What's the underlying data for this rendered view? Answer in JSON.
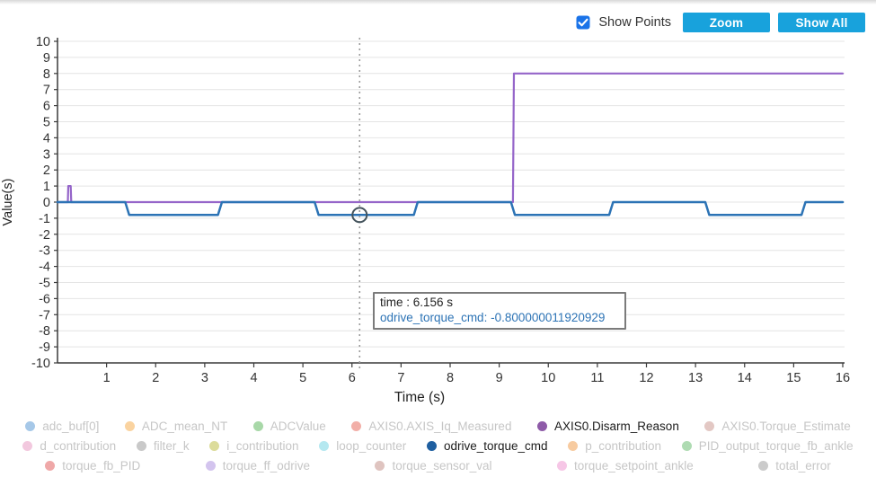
{
  "toolbar": {
    "show_points_label": "Show Points",
    "show_points_checked": true,
    "zoom_button": "Zoom",
    "show_all_button": "Show All",
    "button_color": "#18A2DC",
    "checkbox_color": "#1A73E8"
  },
  "chart_data": {
    "type": "line",
    "title": "",
    "xlabel": "Time (s)",
    "ylabel": "Value(s)",
    "xlim": [
      0,
      16
    ],
    "ylim": [
      -10,
      10
    ],
    "xticks": [
      1,
      2,
      3,
      4,
      5,
      6,
      7,
      8,
      9,
      10,
      11,
      12,
      13,
      14,
      15,
      16
    ],
    "yticks": [
      -10,
      -9,
      -8,
      -7,
      -6,
      -5,
      -4,
      -3,
      -2,
      -1,
      0,
      1,
      2,
      3,
      4,
      5,
      6,
      7,
      8,
      9,
      10
    ],
    "grid": "horizontal",
    "legend_position": "bottom",
    "colors": {
      "grid": "#e4e4e4",
      "axis": "#3a3a3a",
      "tick_text": "#333333",
      "cursor": "#9a9a9a",
      "marker": "#44535c"
    },
    "series": [
      {
        "name": "AXIS0.Disarm_Reason",
        "color": "#9565C9",
        "width": 2.2,
        "points": [
          [
            0,
            0
          ],
          [
            0.21,
            0
          ],
          [
            0.22,
            1
          ],
          [
            0.27,
            1
          ],
          [
            0.28,
            0
          ],
          [
            9.28,
            0
          ],
          [
            9.3,
            8
          ],
          [
            16,
            8
          ]
        ]
      },
      {
        "name": "odrive_torque_cmd",
        "color": "#2C73B5",
        "width": 2.5,
        "points": [
          [
            0,
            0
          ],
          [
            1.38,
            0
          ],
          [
            1.46,
            -0.8
          ],
          [
            3.27,
            -0.8
          ],
          [
            3.35,
            0
          ],
          [
            5.24,
            0
          ],
          [
            5.32,
            -0.8
          ],
          [
            7.26,
            -0.8
          ],
          [
            7.34,
            0
          ],
          [
            9.24,
            0
          ],
          [
            9.32,
            -0.8
          ],
          [
            11.24,
            -0.8
          ],
          [
            11.32,
            0
          ],
          [
            13.2,
            0
          ],
          [
            13.28,
            -0.8
          ],
          [
            15.16,
            -0.8
          ],
          [
            15.24,
            0
          ],
          [
            16,
            0
          ]
        ]
      }
    ],
    "cursor": {
      "time": 6.156,
      "marker_series": "odrive_torque_cmd",
      "marker_value": -0.8
    }
  },
  "tooltip": {
    "line1": "time : 6.156 s",
    "line2": "odrive_torque_cmd: -0.800000011920929",
    "line2_color": "#2C73B5"
  },
  "legend": {
    "active_text_color": "#1b1b1b",
    "faded_text_color": "#c6c6c6",
    "rows": [
      [
        {
          "label": "adc_buf[0]",
          "color": "#a6c8e8",
          "active": false
        },
        {
          "label": "ADC_mean_NT",
          "color": "#fad3a0",
          "active": false
        },
        {
          "label": "ADCValue",
          "color": "#a8d8a8",
          "active": false
        },
        {
          "label": "AXIS0.AXIS_Iq_Measured",
          "color": "#f2afa8",
          "active": false
        },
        {
          "label": "AXIS0.Disarm_Reason",
          "color": "#8e5ba8",
          "active": true
        },
        {
          "label": "AXIS0.Torque_Estimate",
          "color": "#e3c8c4",
          "active": false
        }
      ],
      [
        {
          "label": "d_contribution",
          "color": "#f2c8de",
          "active": false
        },
        {
          "label": "filter_k",
          "color": "#c9c9c9",
          "active": false
        },
        {
          "label": "i_contribution",
          "color": "#dcdc9b",
          "active": false
        },
        {
          "label": "loop_counter",
          "color": "#b5e8f0",
          "active": false
        },
        {
          "label": "odrive_torque_cmd",
          "color": "#1f5fa0",
          "active": true
        },
        {
          "label": "p_contribution",
          "color": "#f7cba0",
          "active": false
        },
        {
          "label": "PID_output_torque_fb_ankle",
          "color": "#aedbb2",
          "active": false
        }
      ],
      [
        {
          "label": "torque_fb_PID",
          "color": "#efa8a8",
          "active": false
        },
        {
          "label": "torque_ff_odrive",
          "color": "#d3c4ee",
          "active": false
        },
        {
          "label": "torque_sensor_val",
          "color": "#dfc4c0",
          "active": false
        },
        {
          "label": "torque_setpoint_ankle",
          "color": "#f6c6e6",
          "active": false
        },
        {
          "label": "total_error",
          "color": "#cbcbcb",
          "active": false
        }
      ]
    ]
  }
}
